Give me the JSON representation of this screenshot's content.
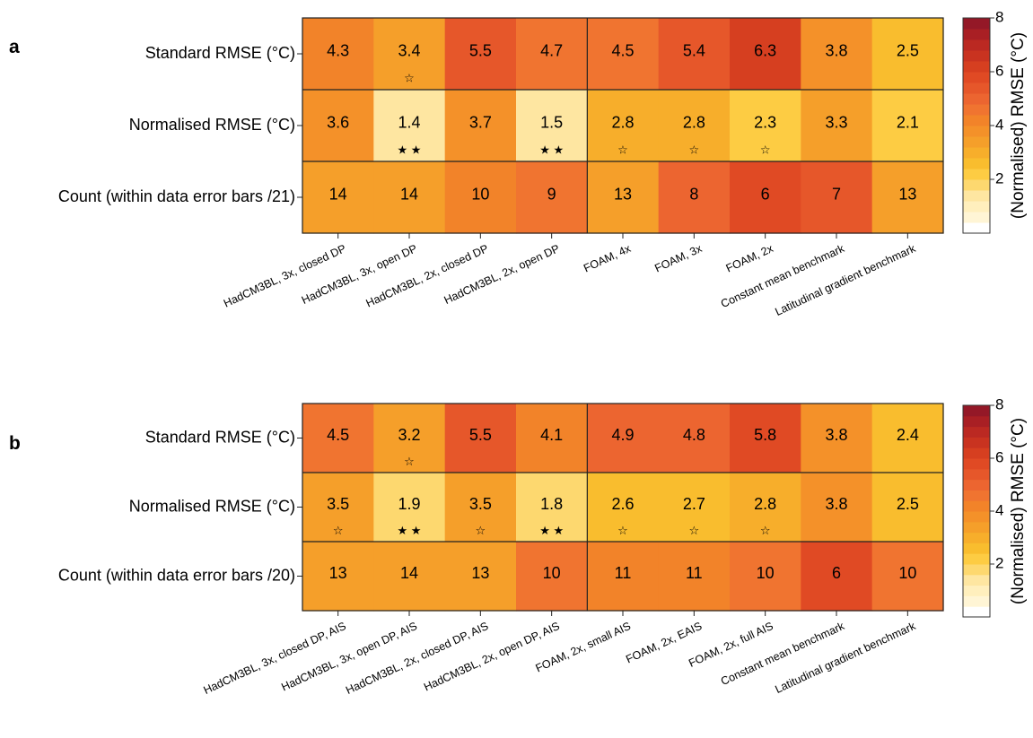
{
  "chart_data": [
    {
      "panel": "a",
      "type": "heatmap",
      "rows": [
        "Standard RMSE (°C)",
        "Normalised RMSE (°C)",
        "Count (within data error bars /21)"
      ],
      "columns": [
        "HadCM3BL, 3x, closed DP",
        "HadCM3BL, 3x, open DP",
        "HadCM3BL, 2x, closed DP",
        "HadCM3BL, 2x, open DP",
        "FOAM, 4x",
        "FOAM, 3x",
        "FOAM, 2x",
        "Constant mean benchmark",
        "Latitudinal gradient benchmark"
      ],
      "values": [
        [
          4.3,
          3.4,
          5.5,
          4.7,
          4.5,
          5.4,
          6.3,
          3.8,
          2.5
        ],
        [
          3.6,
          1.4,
          3.7,
          1.5,
          2.8,
          2.8,
          2.3,
          3.3,
          2.1
        ],
        [
          14,
          14,
          10,
          9,
          13,
          8,
          6,
          7,
          13
        ]
      ],
      "labels": [
        [
          "4.3",
          "3.4",
          "5.5",
          "4.7",
          "4.5",
          "5.4",
          "6.3",
          "3.8",
          "2.5"
        ],
        [
          "3.6",
          "1.4",
          "3.7",
          "1.5",
          "2.8",
          "2.8",
          "2.3",
          "3.3",
          "2.1"
        ],
        [
          "14",
          "14",
          "10",
          "9",
          "13",
          "8",
          "6",
          "7",
          "13"
        ]
      ],
      "cell_fill_level": [
        [
          4.3,
          3.4,
          5.5,
          4.7,
          4.5,
          5.4,
          6.3,
          3.8,
          2.5
        ],
        [
          3.6,
          1.4,
          3.7,
          1.5,
          2.8,
          2.8,
          2.3,
          3.3,
          2.1
        ],
        [
          3.2,
          3.2,
          4.2,
          4.6,
          3.5,
          5.0,
          5.9,
          5.3,
          3.3
        ]
      ],
      "stars": [
        [
          "",
          "☆",
          "",
          "",
          "",
          "",
          "",
          "",
          ""
        ],
        [
          "",
          "★ ★",
          "",
          "★ ★",
          "☆",
          "☆",
          "☆",
          "",
          ""
        ],
        [
          "",
          "",
          "",
          "",
          "",
          "",
          "",
          "",
          ""
        ]
      ]
    },
    {
      "panel": "b",
      "type": "heatmap",
      "rows": [
        "Standard RMSE (°C)",
        "Normalised RMSE (°C)",
        "Count (within data error bars /20)"
      ],
      "columns": [
        "HadCM3BL, 3x, closed DP, AIS",
        "HadCM3BL, 3x, open DP, AIS",
        "HadCM3BL, 2x, closed DP, AIS",
        "HadCM3BL, 2x, open DP, AIS",
        "FOAM, 2x, small AIS",
        "FOAM, 2x, EAIS",
        "FOAM, 2x, full AIS",
        "Constant mean benchmark",
        "Latitudinal gradient benchmark"
      ],
      "values": [
        [
          4.5,
          3.2,
          5.5,
          4.1,
          4.9,
          4.8,
          5.8,
          3.8,
          2.4
        ],
        [
          3.5,
          1.9,
          3.5,
          1.8,
          2.6,
          2.7,
          2.8,
          3.8,
          2.5
        ],
        [
          13,
          14,
          13,
          10,
          11,
          11,
          10,
          6,
          10
        ]
      ],
      "labels": [
        [
          "4.5",
          "3.2",
          "5.5",
          "4.1",
          "4.9",
          "4.8",
          "5.8",
          "3.8",
          "2.4"
        ],
        [
          "3.5",
          "1.9",
          "3.5",
          "1.8",
          "2.6",
          "2.7",
          "2.8",
          "3.8",
          "2.5"
        ],
        [
          "13",
          "14",
          "13",
          "10",
          "11",
          "11",
          "10",
          "6",
          "10"
        ]
      ],
      "cell_fill_level": [
        [
          4.5,
          3.2,
          5.5,
          4.1,
          4.9,
          4.8,
          5.8,
          3.8,
          2.4
        ],
        [
          3.5,
          1.9,
          3.5,
          1.8,
          2.6,
          2.7,
          2.8,
          3.8,
          2.5
        ],
        [
          3.5,
          3.2,
          3.5,
          4.4,
          4.0,
          4.0,
          4.4,
          5.9,
          4.4
        ]
      ],
      "stars": [
        [
          "",
          "☆",
          "",
          "",
          "",
          "",
          "",
          "",
          ""
        ],
        [
          "☆",
          "★ ★",
          "☆",
          "★ ★",
          "☆",
          "☆",
          "☆",
          "",
          ""
        ],
        [
          "",
          "",
          "",
          "",
          "",
          "",
          "",
          "",
          ""
        ]
      ]
    }
  ],
  "colorbar": {
    "title": "(Normalised) RMSE (°C)",
    "range": [
      0,
      8
    ],
    "ticks": [
      "2",
      "4",
      "6",
      "8"
    ],
    "tick_values": [
      2,
      4,
      6,
      8
    ],
    "colors": [
      "#ffffff",
      "#fff5d5",
      "#ffefbd",
      "#fee6a1",
      "#fdd86f",
      "#fdcc43",
      "#f9bd2e",
      "#f7ae2b",
      "#f59f2a",
      "#f49129",
      "#f28329",
      "#f07430",
      "#ec6530",
      "#e6572a",
      "#e04a24",
      "#d63f20",
      "#c93320",
      "#bb2922",
      "#a91f24",
      "#941827"
    ]
  },
  "colors": {
    "grid_line": "#222222"
  }
}
